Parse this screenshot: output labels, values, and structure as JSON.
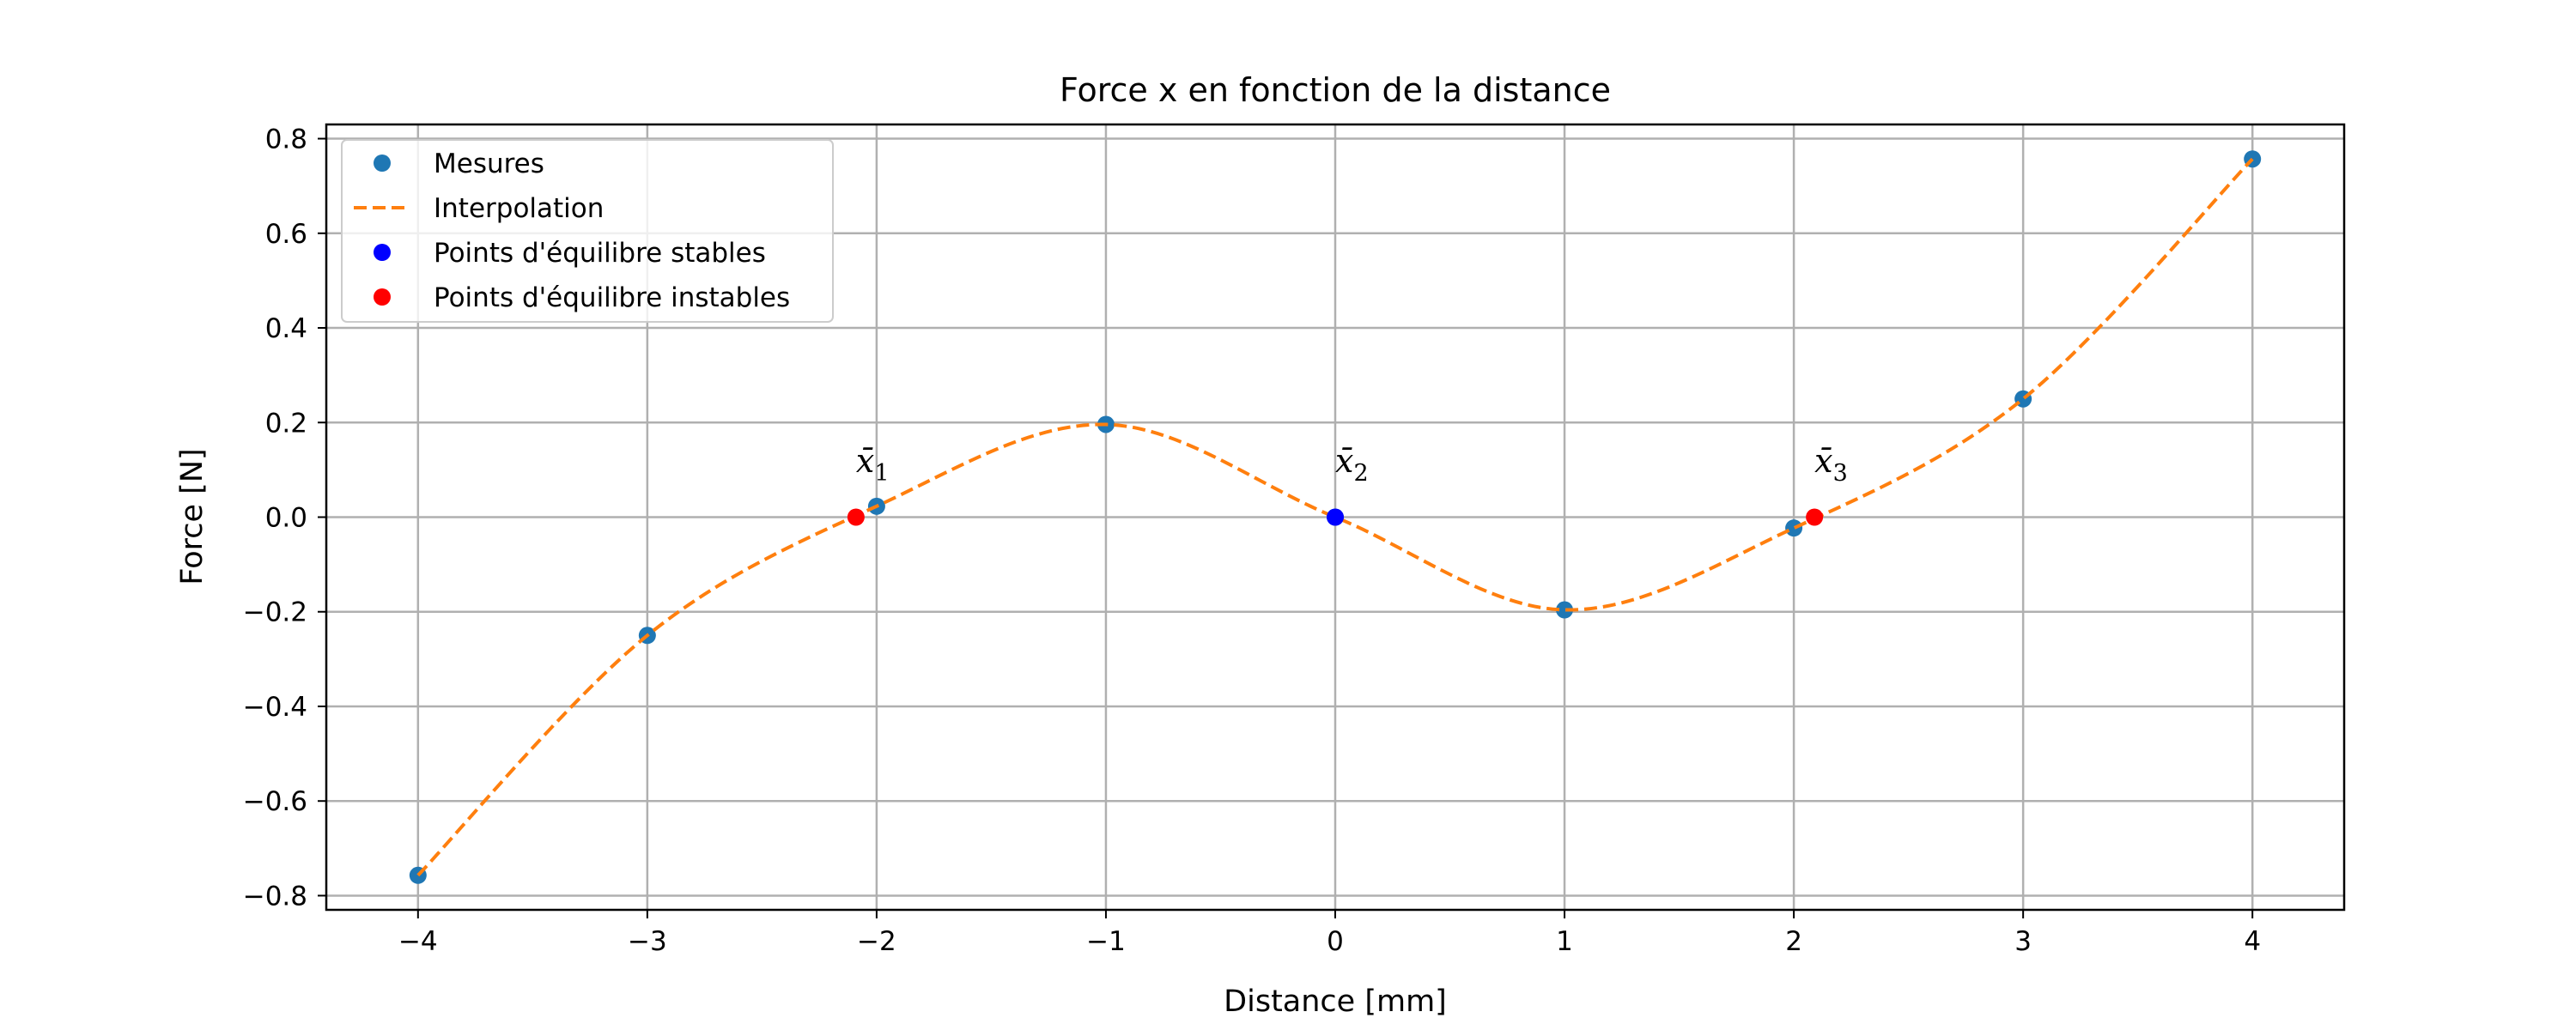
{
  "chart_data": {
    "type": "scatter",
    "title": "Force x en fonction de la distance",
    "xlabel": "Distance [mm]",
    "ylabel": "Force [N]",
    "xlim": [
      -4.4,
      4.4
    ],
    "ylim": [
      -0.83,
      0.83
    ],
    "xticks": [
      -4,
      -3,
      -2,
      -1,
      0,
      1,
      2,
      3,
      4
    ],
    "yticks": [
      -0.8,
      -0.6,
      -0.4,
      -0.2,
      0.0,
      0.2,
      0.4,
      0.6,
      0.8
    ],
    "xtick_labels": [
      "−4",
      "−3",
      "−2",
      "−1",
      "0",
      "1",
      "2",
      "3",
      "4"
    ],
    "ytick_labels": [
      "−0.8",
      "−0.6",
      "−0.4",
      "−0.2",
      "0.0",
      "0.2",
      "0.4",
      "0.6",
      "0.8"
    ],
    "grid": true,
    "legend_position": "top-left",
    "series": [
      {
        "name": "Mesures",
        "kind": "markers",
        "color": "#1f77b4",
        "x": [
          -4,
          -3,
          -2,
          -1,
          0,
          1,
          2,
          3,
          4
        ],
        "y": [
          -0.757,
          -0.25,
          0.023,
          0.196,
          0.0,
          -0.196,
          -0.023,
          0.25,
          0.757
        ]
      },
      {
        "name": "Interpolation",
        "kind": "dashed-line",
        "color": "#ff7f0e",
        "x": [
          -4,
          -3,
          -2,
          -1,
          0,
          1,
          2,
          3,
          4
        ],
        "y": [
          -0.757,
          -0.25,
          0.023,
          0.196,
          0.0,
          -0.196,
          -0.023,
          0.25,
          0.757
        ]
      },
      {
        "name": "Points d'équilibre stables",
        "kind": "markers",
        "color": "#0000ff",
        "x": [
          0.0
        ],
        "y": [
          0.0
        ]
      },
      {
        "name": "Points d'équilibre instables",
        "kind": "markers",
        "color": "#ff0000",
        "x": [
          -2.09,
          2.09
        ],
        "y": [
          0.0,
          0.0
        ]
      }
    ],
    "annotations": [
      {
        "base": "x̄",
        "sub": "1",
        "x": -2.09,
        "y": 0.095
      },
      {
        "base": "x̄",
        "sub": "2",
        "x": 0.0,
        "y": 0.095
      },
      {
        "base": "x̄",
        "sub": "3",
        "x": 2.09,
        "y": 0.095
      }
    ]
  }
}
